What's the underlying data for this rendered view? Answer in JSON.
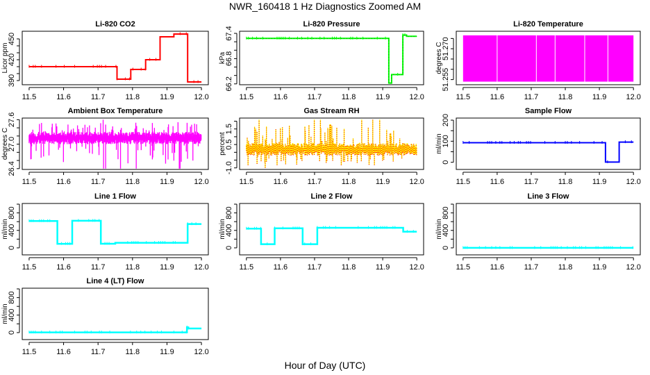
{
  "title": "NWR_160418  1 Hz Diagnostics Zoomed AM",
  "xlabel": "Hour of Day (UTC)",
  "chart_data": [
    {
      "type": "line",
      "title": "Li-820 CO2",
      "ylabel": "Licor ppm",
      "xlim": [
        11.48,
        12.02
      ],
      "ylim": [
        384,
        461
      ],
      "xticks": [
        "11.5",
        "11.6",
        "11.7",
        "11.8",
        "11.9",
        "12.0"
      ],
      "yticks": [
        390,
        400,
        410,
        420,
        430,
        440,
        450
      ],
      "ytick_labels": [
        "390",
        "420",
        "450"
      ],
      "color": "#ff0000",
      "series": [
        {
          "steps": [
            [
              11.5,
              11.755,
              410
            ],
            [
              11.755,
              11.795,
              392
            ],
            [
              11.795,
              11.838,
              406
            ],
            [
              11.838,
              11.88,
              420
            ],
            [
              11.88,
              11.92,
              453
            ],
            [
              11.92,
              11.96,
              457
            ],
            [
              11.96,
              12.0,
              388
            ]
          ]
        }
      ]
    },
    {
      "type": "line",
      "title": "Li-820 Pressure",
      "ylabel": "kPa",
      "xlim": [
        11.48,
        12.02
      ],
      "ylim": [
        66.18,
        67.45
      ],
      "xticks": [
        "11.5",
        "11.6",
        "11.7",
        "11.8",
        "11.9",
        "12.0"
      ],
      "yticks": [
        66.2,
        66.4,
        66.6,
        66.8,
        67.0,
        67.2,
        67.4
      ],
      "ytick_labels": [
        "66.2",
        "66.8",
        "67.4"
      ],
      "color": "#00ff00",
      "series": [
        {
          "steps": [
            [
              11.5,
              11.918,
              67.28
            ],
            [
              11.918,
              11.926,
              66.22
            ],
            [
              11.926,
              11.959,
              66.42
            ],
            [
              11.959,
              11.97,
              67.36
            ],
            [
              11.97,
              12.0,
              67.33
            ]
          ]
        }
      ]
    },
    {
      "type": "line",
      "title": "Li-820 Temperature",
      "ylabel": "degrees C",
      "xlim": [
        11.48,
        12.02
      ],
      "ylim": [
        51.2525,
        51.2785
      ],
      "xticks": [
        "11.5",
        "11.6",
        "11.7",
        "11.8",
        "11.9",
        "12.0"
      ],
      "yticks": [
        51.255,
        51.26,
        51.265,
        51.27,
        51.275
      ],
      "ytick_labels": [
        "51.255",
        "51.270"
      ],
      "color": "#ff00ff",
      "series": [
        {
          "band": [
            51.254,
            51.2765
          ],
          "gaps": [
            11.6,
            11.715,
            11.77,
            11.857,
            11.925
          ]
        }
      ]
    },
    {
      "type": "line",
      "title": "Ambient Box Temperature",
      "ylabel": "degrees C",
      "xlim": [
        11.48,
        12.02
      ],
      "ylim": [
        26.38,
        27.64
      ],
      "xticks": [
        "11.5",
        "11.6",
        "11.7",
        "11.8",
        "11.9",
        "12.0"
      ],
      "yticks": [
        26.4,
        26.6,
        26.8,
        27.0,
        27.2,
        27.4,
        27.6
      ],
      "ytick_labels": [
        "26.4",
        "27.0",
        "27.6"
      ],
      "color": "#ff00ff",
      "series": [
        {
          "typical_range": [
            27.0,
            27.3
          ],
          "extremes": [
            26.4,
            27.6
          ]
        }
      ]
    },
    {
      "type": "line",
      "title": "Gas Stream RH",
      "ylabel": "percent",
      "xlim": [
        11.48,
        12.02
      ],
      "ylim": [
        -1.1,
        2.2
      ],
      "xticks": [
        "11.5",
        "11.6",
        "11.7",
        "11.8",
        "11.9",
        "12.0"
      ],
      "yticks": [
        -1.0,
        -0.5,
        0,
        0.5,
        1.0,
        1.5,
        2.0
      ],
      "ytick_labels": [
        "-1.0",
        "0.5",
        "1.5"
      ],
      "color": "#ff8000",
      "series": [
        {
          "typical_range": [
            -0.2,
            0.6
          ],
          "extremes": [
            -1.0,
            2.1
          ]
        }
      ]
    },
    {
      "type": "line",
      "title": "Sample Flow",
      "ylabel": "ml/min",
      "xlim": [
        11.48,
        12.02
      ],
      "ylim": [
        -34,
        210
      ],
      "xticks": [
        "11.5",
        "11.6",
        "11.7",
        "11.8",
        "11.9",
        "12.0"
      ],
      "yticks": [
        0,
        50,
        100,
        150,
        200
      ],
      "ytick_labels": [
        "0",
        "100",
        "200"
      ],
      "color": "#0000ff",
      "series": [
        {
          "steps": [
            [
              11.5,
              11.918,
              93
            ],
            [
              11.918,
              11.958,
              1
            ],
            [
              11.958,
              12.0,
              96
            ]
          ]
        }
      ]
    },
    {
      "type": "line",
      "title": "Line 1 Flow",
      "ylabel": "ml/min",
      "xlim": [
        11.48,
        12.02
      ],
      "ylim": [
        -160,
        1016
      ],
      "xticks": [
        "11.5",
        "11.6",
        "11.7",
        "11.8",
        "11.9",
        "12.0"
      ],
      "yticks": [
        0,
        200,
        400,
        600,
        800,
        1000
      ],
      "ytick_labels": [
        "0",
        "400",
        "800"
      ],
      "color": "#00ffff",
      "series": [
        {
          "steps": [
            [
              11.5,
              11.582,
              615
            ],
            [
              11.582,
              11.625,
              92
            ],
            [
              11.625,
              11.708,
              620
            ],
            [
              11.708,
              11.75,
              95
            ],
            [
              11.75,
              11.96,
              116
            ],
            [
              11.96,
              12.0,
              545
            ]
          ]
        }
      ]
    },
    {
      "type": "line",
      "title": "Line 2 Flow",
      "ylabel": "ml/min",
      "xlim": [
        11.48,
        12.02
      ],
      "ylim": [
        -160,
        1016
      ],
      "xticks": [
        "11.5",
        "11.6",
        "11.7",
        "11.8",
        "11.9",
        "12.0"
      ],
      "yticks": [
        0,
        200,
        400,
        600,
        800,
        1000
      ],
      "ytick_labels": [
        "0",
        "400",
        "800"
      ],
      "color": "#00ffff",
      "series": [
        {
          "steps": [
            [
              11.5,
              11.543,
              440
            ],
            [
              11.543,
              11.583,
              85
            ],
            [
              11.583,
              11.665,
              448
            ],
            [
              11.665,
              11.708,
              85
            ],
            [
              11.708,
              11.96,
              460
            ],
            [
              11.96,
              12.0,
              370
            ]
          ]
        }
      ]
    },
    {
      "type": "line",
      "title": "Line 3 Flow",
      "ylabel": "ml/min",
      "xlim": [
        11.48,
        12.02
      ],
      "ylim": [
        -160,
        1016
      ],
      "xticks": [
        "11.5",
        "11.6",
        "11.7",
        "11.8",
        "11.9",
        "12.0"
      ],
      "yticks": [
        0,
        200,
        400,
        600,
        800,
        1000
      ],
      "ytick_labels": [
        "0",
        "400",
        "800"
      ],
      "color": "#00ffff",
      "series": [
        {
          "steps": [
            [
              11.5,
              12.0,
              0
            ]
          ]
        }
      ]
    },
    {
      "type": "line",
      "title": "Line 4 (LT) Flow",
      "ylabel": "ml/min",
      "xlim": [
        11.48,
        12.02
      ],
      "ylim": [
        -160,
        1016
      ],
      "xticks": [
        "11.5",
        "11.6",
        "11.7",
        "11.8",
        "11.9",
        "12.0"
      ],
      "yticks": [
        0,
        200,
        400,
        600,
        800,
        1000
      ],
      "ytick_labels": [
        "0",
        "400",
        "800"
      ],
      "color": "#00ffff",
      "series": [
        {
          "steps": [
            [
              11.5,
              11.958,
              5
            ],
            [
              11.958,
              11.962,
              120
            ],
            [
              11.962,
              12.0,
              95
            ]
          ]
        }
      ]
    }
  ]
}
